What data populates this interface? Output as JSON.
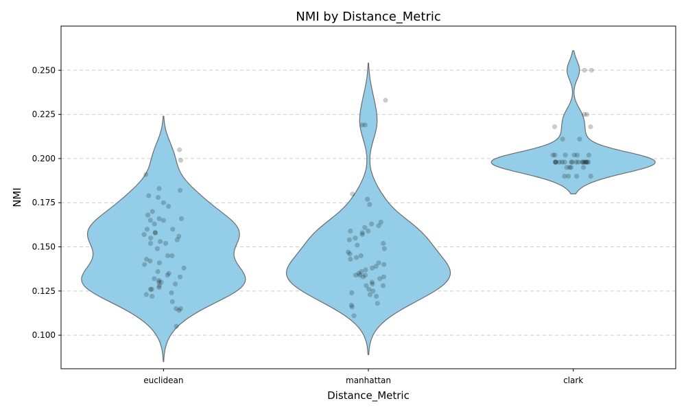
{
  "chart_data": {
    "type": "violin",
    "title": "NMI by Distance_Metric",
    "xlabel": "Distance_Metric",
    "ylabel": "NMI",
    "ylim": [
      0.081,
      0.275
    ],
    "yticks": [
      "0.100",
      "0.125",
      "0.150",
      "0.175",
      "0.200",
      "0.225",
      "0.250"
    ],
    "grid": true,
    "colors": {
      "violin": "#8ecae6",
      "edge": "#6b6b6b",
      "point": "#000000"
    },
    "categories": [
      "euclidean",
      "manhattan",
      "clark"
    ],
    "series": [
      {
        "category": "euclidean",
        "range": [
          0.085,
          0.224
        ],
        "values": [
          0.205,
          0.199,
          0.191,
          0.183,
          0.182,
          0.179,
          0.178,
          0.175,
          0.173,
          0.17,
          0.168,
          0.166,
          0.166,
          0.165,
          0.165,
          0.163,
          0.16,
          0.16,
          0.158,
          0.158,
          0.157,
          0.156,
          0.155,
          0.154,
          0.153,
          0.152,
          0.152,
          0.149,
          0.145,
          0.145,
          0.143,
          0.142,
          0.141,
          0.14,
          0.138,
          0.136,
          0.135,
          0.134,
          0.133,
          0.132,
          0.131,
          0.13,
          0.13,
          0.129,
          0.128,
          0.127,
          0.126,
          0.126,
          0.124,
          0.123,
          0.122,
          0.119,
          0.115,
          0.115,
          0.114,
          0.105
        ]
      },
      {
        "category": "manhattan",
        "range": [
          0.089,
          0.254
        ],
        "values": [
          0.233,
          0.219,
          0.219,
          0.18,
          0.177,
          0.174,
          0.164,
          0.163,
          0.162,
          0.161,
          0.159,
          0.159,
          0.158,
          0.157,
          0.155,
          0.154,
          0.152,
          0.151,
          0.149,
          0.147,
          0.146,
          0.145,
          0.144,
          0.143,
          0.141,
          0.14,
          0.139,
          0.138,
          0.137,
          0.136,
          0.135,
          0.134,
          0.134,
          0.134,
          0.133,
          0.133,
          0.132,
          0.13,
          0.129,
          0.128,
          0.128,
          0.126,
          0.125,
          0.124,
          0.123,
          0.122,
          0.118,
          0.117,
          0.116,
          0.111
        ]
      },
      {
        "category": "clark",
        "range": [
          0.18,
          0.261
        ],
        "values": [
          0.25,
          0.25,
          0.225,
          0.225,
          0.218,
          0.218,
          0.211,
          0.211,
          0.202,
          0.202,
          0.202,
          0.202,
          0.202,
          0.202,
          0.198,
          0.198,
          0.198,
          0.198,
          0.198,
          0.198,
          0.198,
          0.198,
          0.198,
          0.198,
          0.198,
          0.198,
          0.198,
          0.198,
          0.198,
          0.198,
          0.198,
          0.195,
          0.195,
          0.195,
          0.195,
          0.19,
          0.19,
          0.19,
          0.19
        ]
      }
    ]
  }
}
